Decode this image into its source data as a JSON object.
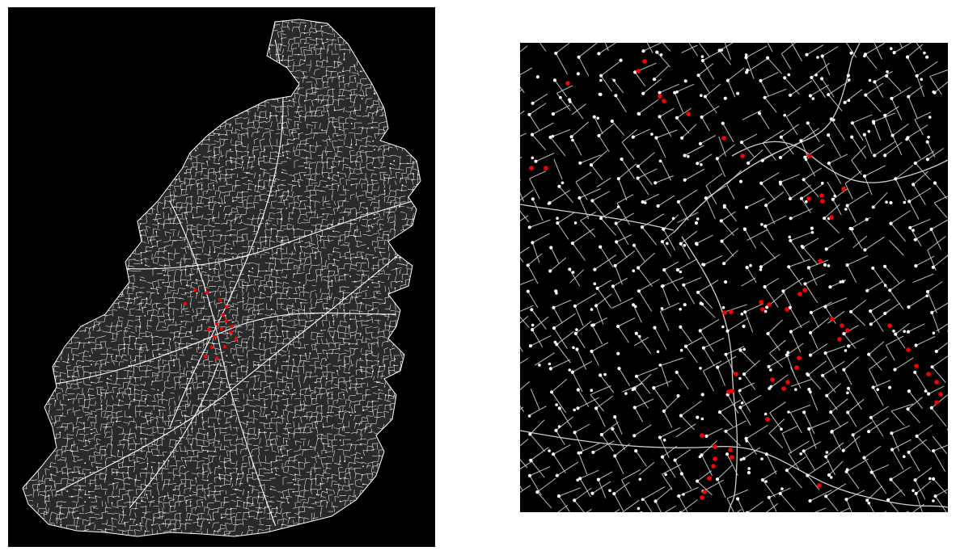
{
  "figure": {
    "background": "#ffffff",
    "map_background": "#000000",
    "edge_color": "#ffffff",
    "node_color": "#ffffff",
    "highlight_color": "#ff0000"
  },
  "panels": [
    {
      "id": "overview",
      "kind": "street-network-overview",
      "has_highlighted_nodes": true
    },
    {
      "id": "zoom",
      "kind": "street-network-zoom",
      "has_highlighted_nodes": true
    }
  ]
}
